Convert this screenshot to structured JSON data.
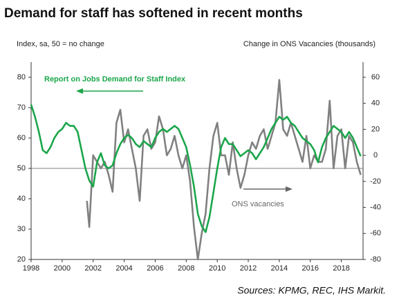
{
  "chart_data": {
    "type": "line",
    "title": "Demand for staff has softened in recent months",
    "y_label": "Index, sa, 50 = no change",
    "y2_label": "Change in ONS Vacancies (thousands)",
    "source": "Sources: KPMG, REC, IHS Markit.",
    "annotations": [
      "Report on Jobs Demand for Staff Index",
      "ONS vacancies"
    ],
    "xlim": [
      1998,
      2019.4
    ],
    "xticks": [
      1998,
      2000,
      2002,
      2004,
      2006,
      2008,
      2010,
      2012,
      2014,
      2016,
      2018
    ],
    "ylim": [
      20,
      85
    ],
    "yticks": [
      20,
      30,
      40,
      50,
      60,
      70,
      80
    ],
    "y2lim": [
      -80,
      71.67
    ],
    "y2ticks": [
      -80,
      -60,
      -40,
      -20,
      0,
      20,
      40,
      60
    ],
    "hline": 50,
    "series": [
      {
        "name": "Report on Jobs Demand for Staff Index",
        "color": "#1aa64a",
        "axis": "y",
        "x": [
          1998,
          1998.25,
          1998.5,
          1998.75,
          1999,
          1999.25,
          1999.5,
          1999.75,
          2000,
          2000.25,
          2000.5,
          2000.75,
          2001,
          2001.25,
          2001.5,
          2001.75,
          2002,
          2002.25,
          2002.5,
          2002.75,
          2003,
          2003.25,
          2003.5,
          2003.75,
          2004,
          2004.25,
          2004.5,
          2004.75,
          2005,
          2005.25,
          2005.5,
          2005.75,
          2006,
          2006.25,
          2006.5,
          2006.75,
          2007,
          2007.25,
          2007.5,
          2007.75,
          2008,
          2008.25,
          2008.5,
          2008.75,
          2009,
          2009.25,
          2009.5,
          2009.75,
          2010,
          2010.25,
          2010.5,
          2010.75,
          2011,
          2011.25,
          2011.5,
          2011.75,
          2012,
          2012.25,
          2012.5,
          2012.75,
          2013,
          2013.25,
          2013.5,
          2013.75,
          2014,
          2014.25,
          2014.5,
          2014.75,
          2015,
          2015.25,
          2015.5,
          2015.75,
          2016,
          2016.25,
          2016.5,
          2016.75,
          2017,
          2017.25,
          2017.5,
          2017.75,
          2018,
          2018.25,
          2018.5,
          2018.75,
          2019,
          2019.25
        ],
        "values": [
          71,
          67,
          62,
          56,
          55,
          57,
          60,
          62,
          63,
          65,
          64,
          64,
          62,
          56,
          50,
          46,
          44,
          52,
          55,
          51,
          50,
          51,
          55,
          58,
          60,
          61,
          60,
          58,
          57,
          59,
          58,
          57,
          60,
          62,
          63,
          62,
          63,
          64,
          63,
          60,
          57,
          51,
          44,
          35,
          31,
          29,
          34,
          42,
          50,
          57,
          60,
          58,
          58,
          56,
          54,
          55,
          56,
          55,
          53,
          55,
          57,
          60,
          63,
          65,
          67,
          66,
          67,
          65,
          64,
          62,
          60,
          59,
          58,
          56,
          52,
          57,
          60,
          62,
          64,
          63,
          62,
          60,
          62,
          60,
          57,
          54
        ]
      },
      {
        "name": "ONS vacancies",
        "color": "#808080",
        "axis": "y2",
        "x": [
          2001.6,
          2001.75,
          2002,
          2002.25,
          2002.5,
          2002.75,
          2003,
          2003.25,
          2003.5,
          2003.75,
          2004,
          2004.25,
          2004.5,
          2004.75,
          2005,
          2005.25,
          2005.5,
          2005.75,
          2006,
          2006.25,
          2006.5,
          2006.75,
          2007,
          2007.25,
          2007.5,
          2007.75,
          2008,
          2008.25,
          2008.5,
          2008.75,
          2009,
          2009.25,
          2009.5,
          2009.75,
          2010,
          2010.25,
          2010.5,
          2010.75,
          2011,
          2011.25,
          2011.5,
          2011.75,
          2012,
          2012.25,
          2012.5,
          2012.75,
          2013,
          2013.25,
          2013.5,
          2013.75,
          2014,
          2014.25,
          2014.5,
          2014.75,
          2015,
          2015.25,
          2015.5,
          2015.75,
          2016,
          2016.25,
          2016.5,
          2016.75,
          2017,
          2017.25,
          2017.5,
          2017.75,
          2018,
          2018.25,
          2018.5,
          2018.75,
          2019,
          2019.25
        ],
        "values": [
          -35,
          -55,
          0,
          -5,
          -10,
          -5,
          -15,
          -28,
          25,
          35,
          10,
          20,
          5,
          -10,
          -35,
          15,
          20,
          5,
          10,
          30,
          20,
          0,
          5,
          15,
          0,
          -10,
          0,
          -20,
          -55,
          -80,
          -60,
          -45,
          -10,
          15,
          25,
          0,
          0,
          -15,
          10,
          -10,
          -25,
          -15,
          0,
          10,
          5,
          15,
          20,
          5,
          15,
          25,
          58,
          20,
          15,
          25,
          15,
          5,
          -5,
          15,
          -10,
          0,
          -5,
          -5,
          5,
          42,
          -10,
          15,
          20,
          -10,
          15,
          10,
          -5,
          -15
        ]
      }
    ]
  }
}
